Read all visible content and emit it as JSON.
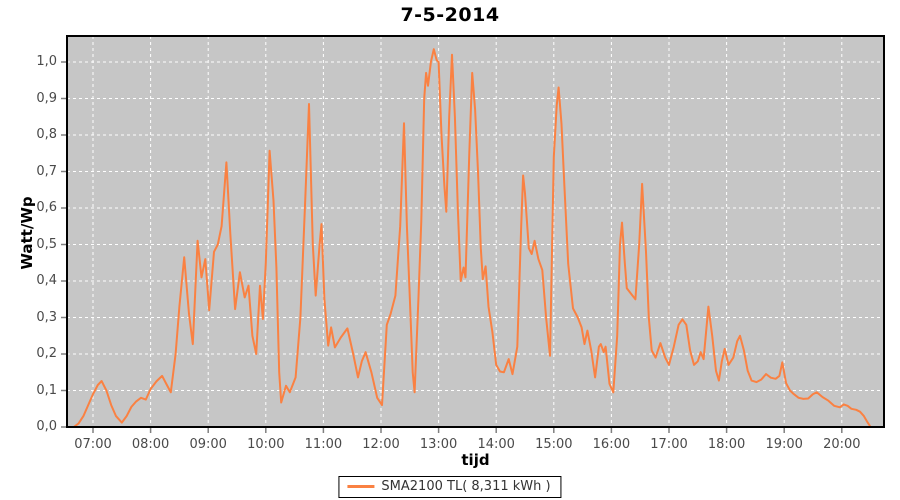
{
  "chart_data": {
    "type": "line",
    "title": "7-5-2014",
    "xlabel": "tijd",
    "ylabel": "Watt/Wp",
    "x_ticks": [
      "07:00",
      "08:00",
      "09:00",
      "10:00",
      "11:00",
      "12:00",
      "13:00",
      "14:00",
      "15:00",
      "16:00",
      "17:00",
      "18:00",
      "19:00",
      "20:00"
    ],
    "y_ticks": [
      "0,0",
      "0,1",
      "0,2",
      "0,3",
      "0,4",
      "0,5",
      "0,6",
      "0,7",
      "0,8",
      "0,9",
      "1,0"
    ],
    "ylim": [
      0.0,
      1.07
    ],
    "x_range": [
      "06:40",
      "20:30"
    ],
    "grid": "white dashed on gray plot background",
    "legend_position": "bottom",
    "plot_bg_color": "#c6c6c6",
    "grid_color": "#ffffff",
    "legend": {
      "label": "SMA2100 TL( 8,311 kWh )"
    },
    "series": [
      {
        "name": "SMA2100 TL",
        "color": "#fa8142",
        "points": [
          [
            "06:40",
            0.0
          ],
          [
            "06:45",
            0.01
          ],
          [
            "06:50",
            0.03
          ],
          [
            "06:55",
            0.06
          ],
          [
            "07:00",
            0.09
          ],
          [
            "07:05",
            0.115
          ],
          [
            "07:09",
            0.126
          ],
          [
            "07:14",
            0.1
          ],
          [
            "07:19",
            0.06
          ],
          [
            "07:24",
            0.03
          ],
          [
            "07:30",
            0.012
          ],
          [
            "07:35",
            0.03
          ],
          [
            "07:40",
            0.055
          ],
          [
            "07:45",
            0.07
          ],
          [
            "07:50",
            0.08
          ],
          [
            "07:55",
            0.075
          ],
          [
            "08:00",
            0.104
          ],
          [
            "08:06",
            0.125
          ],
          [
            "08:12",
            0.14
          ],
          [
            "08:17",
            0.115
          ],
          [
            "08:21",
            0.095
          ],
          [
            "08:26",
            0.2
          ],
          [
            "08:30",
            0.33
          ],
          [
            "08:35",
            0.465
          ],
          [
            "08:40",
            0.31
          ],
          [
            "08:44",
            0.227
          ],
          [
            "08:49",
            0.51
          ],
          [
            "08:53",
            0.41
          ],
          [
            "08:57",
            0.46
          ],
          [
            "09:01",
            0.32
          ],
          [
            "09:06",
            0.48
          ],
          [
            "09:10",
            0.5
          ],
          [
            "09:14",
            0.55
          ],
          [
            "09:19",
            0.725
          ],
          [
            "09:23",
            0.53
          ],
          [
            "09:28",
            0.323
          ],
          [
            "09:33",
            0.424
          ],
          [
            "09:38",
            0.355
          ],
          [
            "09:42",
            0.387
          ],
          [
            "09:46",
            0.25
          ],
          [
            "09:50",
            0.2
          ],
          [
            "09:54",
            0.387
          ],
          [
            "09:57",
            0.296
          ],
          [
            "10:00",
            0.45
          ],
          [
            "10:04",
            0.757
          ],
          [
            "10:08",
            0.62
          ],
          [
            "10:11",
            0.437
          ],
          [
            "10:14",
            0.15
          ],
          [
            "10:16",
            0.067
          ],
          [
            "10:21",
            0.113
          ],
          [
            "10:25",
            0.095
          ],
          [
            "10:31",
            0.136
          ],
          [
            "10:36",
            0.3
          ],
          [
            "10:41",
            0.62
          ],
          [
            "10:45",
            0.885
          ],
          [
            "10:49",
            0.5
          ],
          [
            "10:52",
            0.36
          ],
          [
            "10:56",
            0.5
          ],
          [
            "10:58",
            0.556
          ],
          [
            "11:01",
            0.35
          ],
          [
            "11:05",
            0.223
          ],
          [
            "11:08",
            0.273
          ],
          [
            "11:12",
            0.218
          ],
          [
            "11:18",
            0.245
          ],
          [
            "11:25",
            0.27
          ],
          [
            "11:31",
            0.2
          ],
          [
            "11:36",
            0.136
          ],
          [
            "11:40",
            0.18
          ],
          [
            "11:44",
            0.205
          ],
          [
            "11:50",
            0.15
          ],
          [
            "11:56",
            0.08
          ],
          [
            "12:01",
            0.06
          ],
          [
            "12:06",
            0.28
          ],
          [
            "12:10",
            0.31
          ],
          [
            "12:15",
            0.36
          ],
          [
            "12:20",
            0.55
          ],
          [
            "12:24",
            0.832
          ],
          [
            "12:27",
            0.55
          ],
          [
            "12:30",
            0.355
          ],
          [
            "12:33",
            0.15
          ],
          [
            "12:35",
            0.095
          ],
          [
            "12:39",
            0.35
          ],
          [
            "12:42",
            0.565
          ],
          [
            "12:45",
            0.9
          ],
          [
            "12:47",
            0.97
          ],
          [
            "12:49",
            0.935
          ],
          [
            "12:52",
            1.0
          ],
          [
            "12:55",
            1.035
          ],
          [
            "12:58",
            1.005
          ],
          [
            "13:00",
            1.0
          ],
          [
            "13:03",
            0.8
          ],
          [
            "13:06",
            0.66
          ],
          [
            "13:08",
            0.59
          ],
          [
            "13:11",
            0.85
          ],
          [
            "13:14",
            1.02
          ],
          [
            "13:17",
            0.85
          ],
          [
            "13:20",
            0.6
          ],
          [
            "13:23",
            0.4
          ],
          [
            "13:26",
            0.437
          ],
          [
            "13:28",
            0.41
          ],
          [
            "13:32",
            0.75
          ],
          [
            "13:35",
            0.97
          ],
          [
            "13:38",
            0.87
          ],
          [
            "13:41",
            0.7
          ],
          [
            "13:44",
            0.49
          ],
          [
            "13:46",
            0.405
          ],
          [
            "13:49",
            0.44
          ],
          [
            "13:52",
            0.33
          ],
          [
            "13:56",
            0.26
          ],
          [
            "14:00",
            0.17
          ],
          [
            "14:04",
            0.152
          ],
          [
            "14:08",
            0.15
          ],
          [
            "14:13",
            0.186
          ],
          [
            "14:17",
            0.145
          ],
          [
            "14:22",
            0.22
          ],
          [
            "14:26",
            0.55
          ],
          [
            "14:28",
            0.689
          ],
          [
            "14:30",
            0.64
          ],
          [
            "14:34",
            0.49
          ],
          [
            "14:37",
            0.474
          ],
          [
            "14:40",
            0.51
          ],
          [
            "14:44",
            0.46
          ],
          [
            "14:48",
            0.43
          ],
          [
            "14:52",
            0.3
          ],
          [
            "14:56",
            0.195
          ],
          [
            "15:00",
            0.74
          ],
          [
            "15:03",
            0.88
          ],
          [
            "15:05",
            0.93
          ],
          [
            "15:08",
            0.83
          ],
          [
            "15:11",
            0.66
          ],
          [
            "15:15",
            0.447
          ],
          [
            "15:20",
            0.325
          ],
          [
            "15:25",
            0.3
          ],
          [
            "15:29",
            0.273
          ],
          [
            "15:32",
            0.227
          ],
          [
            "15:35",
            0.264
          ],
          [
            "15:39",
            0.21
          ],
          [
            "15:43",
            0.136
          ],
          [
            "15:47",
            0.22
          ],
          [
            "15:49",
            0.227
          ],
          [
            "15:52",
            0.205
          ],
          [
            "15:54",
            0.22
          ],
          [
            "15:58",
            0.118
          ],
          [
            "16:02",
            0.095
          ],
          [
            "16:06",
            0.25
          ],
          [
            "16:09",
            0.5
          ],
          [
            "16:11",
            0.56
          ],
          [
            "16:14",
            0.45
          ],
          [
            "16:16",
            0.38
          ],
          [
            "16:19",
            0.37
          ],
          [
            "16:22",
            0.36
          ],
          [
            "16:25",
            0.35
          ],
          [
            "16:29",
            0.5
          ],
          [
            "16:32",
            0.666
          ],
          [
            "16:36",
            0.48
          ],
          [
            "16:39",
            0.3
          ],
          [
            "16:42",
            0.21
          ],
          [
            "16:46",
            0.19
          ],
          [
            "16:51",
            0.23
          ],
          [
            "16:56",
            0.19
          ],
          [
            "17:00",
            0.17
          ],
          [
            "17:05",
            0.22
          ],
          [
            "17:10",
            0.28
          ],
          [
            "17:14",
            0.295
          ],
          [
            "17:18",
            0.28
          ],
          [
            "17:22",
            0.21
          ],
          [
            "17:26",
            0.17
          ],
          [
            "17:30",
            0.18
          ],
          [
            "17:33",
            0.205
          ],
          [
            "17:36",
            0.186
          ],
          [
            "17:41",
            0.33
          ],
          [
            "17:45",
            0.25
          ],
          [
            "17:49",
            0.154
          ],
          [
            "17:52",
            0.127
          ],
          [
            "17:55",
            0.18
          ],
          [
            "17:58",
            0.214
          ],
          [
            "18:02",
            0.17
          ],
          [
            "18:07",
            0.19
          ],
          [
            "18:11",
            0.235
          ],
          [
            "18:14",
            0.25
          ],
          [
            "18:18",
            0.21
          ],
          [
            "18:22",
            0.154
          ],
          [
            "18:26",
            0.127
          ],
          [
            "18:31",
            0.123
          ],
          [
            "18:36",
            0.13
          ],
          [
            "18:41",
            0.145
          ],
          [
            "18:46",
            0.135
          ],
          [
            "18:51",
            0.132
          ],
          [
            "18:55",
            0.14
          ],
          [
            "18:58",
            0.177
          ],
          [
            "19:02",
            0.12
          ],
          [
            "19:06",
            0.1
          ],
          [
            "19:10",
            0.09
          ],
          [
            "19:15",
            0.08
          ],
          [
            "19:20",
            0.077
          ],
          [
            "19:25",
            0.078
          ],
          [
            "19:30",
            0.09
          ],
          [
            "19:34",
            0.095
          ],
          [
            "19:40",
            0.082
          ],
          [
            "19:46",
            0.072
          ],
          [
            "19:52",
            0.058
          ],
          [
            "19:58",
            0.054
          ],
          [
            "20:02",
            0.062
          ],
          [
            "20:06",
            0.058
          ],
          [
            "20:10",
            0.05
          ],
          [
            "20:15",
            0.047
          ],
          [
            "20:19",
            0.042
          ],
          [
            "20:23",
            0.03
          ],
          [
            "20:27",
            0.012
          ],
          [
            "20:30",
            0.0
          ]
        ]
      }
    ]
  }
}
